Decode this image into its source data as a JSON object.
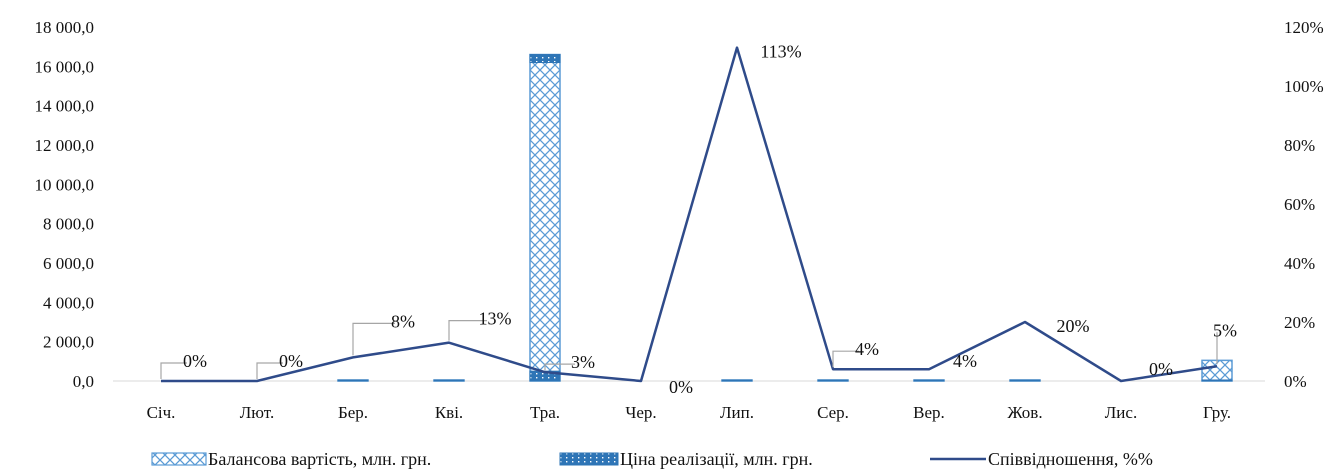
{
  "chart_data": {
    "type": "bar",
    "categories": [
      "Січ.",
      "Лют.",
      "Бер.",
      "Кві.",
      "Тра.",
      "Чер.",
      "Лип.",
      "Сер.",
      "Вер.",
      "Жов.",
      "Лис.",
      "Гру."
    ],
    "series": [
      {
        "name": "Балансова вартість, млн. грн.",
        "type": "bar",
        "axis": "left",
        "values": [
          0,
          0,
          20,
          25,
          16600,
          0,
          25,
          30,
          30,
          50,
          0,
          1050
        ]
      },
      {
        "name": "Ціна реалізації, млн. грн.",
        "type": "bar",
        "axis": "left",
        "values": [
          0,
          0,
          1.6,
          3.3,
          500,
          0,
          28,
          1.2,
          1.2,
          10,
          0,
          52
        ]
      },
      {
        "name": "Співвідношення, %%",
        "type": "line",
        "axis": "right",
        "values": [
          0,
          0,
          8,
          13,
          3,
          0,
          113,
          4,
          4,
          20,
          0,
          5
        ],
        "labels": [
          "0%",
          "0%",
          "8%",
          "13%",
          "3%",
          "0%",
          "113%",
          "4%",
          "4%",
          "20%",
          "0%",
          "5%"
        ]
      }
    ],
    "y_left": {
      "ylim": [
        0,
        18000
      ],
      "ticks": [
        0,
        2000,
        4000,
        6000,
        8000,
        10000,
        12000,
        14000,
        16000,
        18000
      ],
      "tick_labels": [
        "0,0",
        "2 000,0",
        "4 000,0",
        "6 000,0",
        "8 000,0",
        "10 000,0",
        "12 000,0",
        "14 000,0",
        "16 000,0",
        "18 000,0"
      ]
    },
    "y_right": {
      "ylim": [
        0,
        120
      ],
      "ticks": [
        0,
        20,
        40,
        60,
        80,
        100,
        120
      ],
      "tick_labels": [
        "0%",
        "20%",
        "40%",
        "60%",
        "80%",
        "100%",
        "120%"
      ]
    },
    "legend_position": "bottom",
    "grid": false,
    "colors": {
      "bar1_stroke": "#5b9bd5",
      "bar1_fill": "#ffffff",
      "bar2_fill": "#2e75b6",
      "line": "#2f4b8a",
      "axis": "#d9d9d9",
      "leader": "#a6a6a6"
    }
  }
}
